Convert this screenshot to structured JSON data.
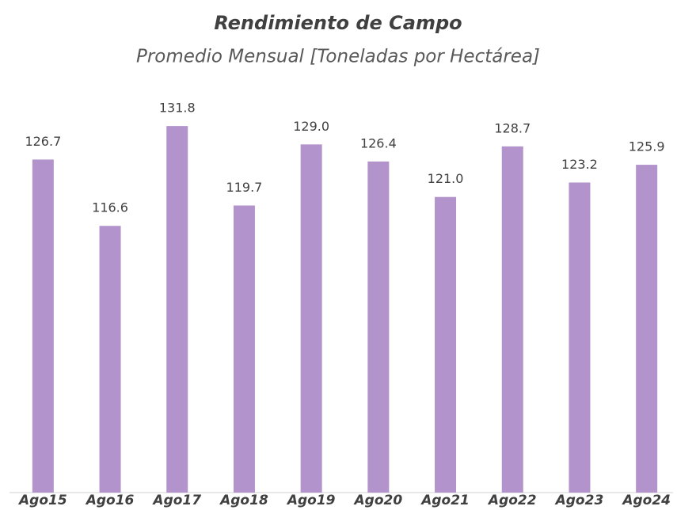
{
  "chart_data": {
    "type": "bar",
    "title": "Rendimiento de Campo",
    "subtitle": "Promedio Mensual [Toneladas por Hectárea]",
    "categories": [
      "Ago15",
      "Ago16",
      "Ago17",
      "Ago18",
      "Ago19",
      "Ago20",
      "Ago21",
      "Ago22",
      "Ago23",
      "Ago24"
    ],
    "values": [
      126.7,
      116.6,
      131.8,
      119.7,
      129.0,
      126.4,
      121.0,
      128.7,
      123.2,
      125.9
    ],
    "value_labels": [
      "126.7",
      "116.6",
      "131.8",
      "119.7",
      "129.0",
      "126.4",
      "121.0",
      "128.7",
      "123.2",
      "125.9"
    ],
    "color": "#b393cb",
    "ylim": [
      76,
      137
    ]
  }
}
